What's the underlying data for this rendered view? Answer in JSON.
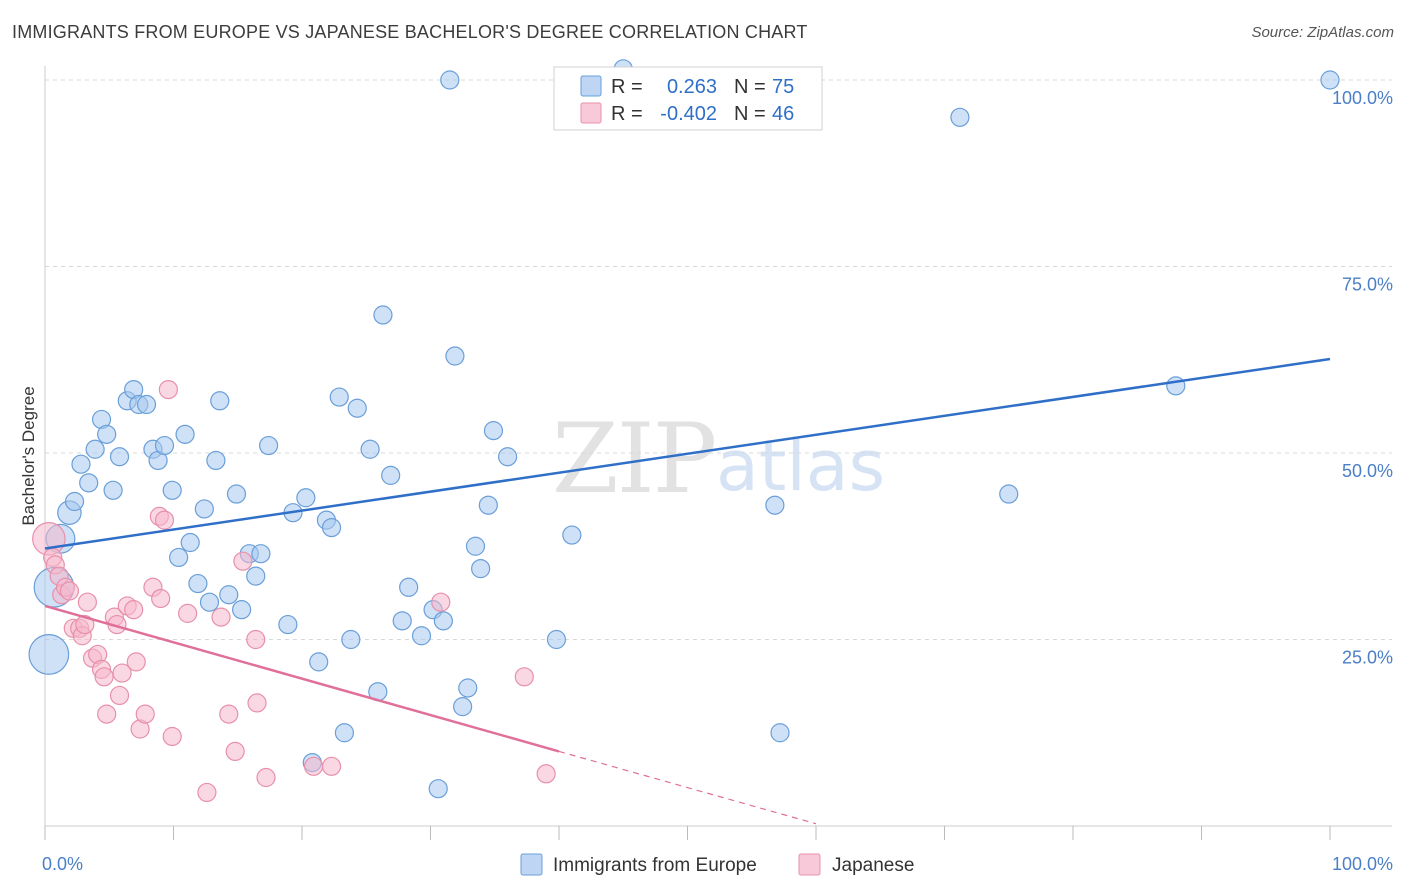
{
  "header": {
    "title": "IMMIGRANTS FROM EUROPE VS JAPANESE BACHELOR'S DEGREE CORRELATION CHART",
    "source": "Source: ZipAtlas.com"
  },
  "watermark": {
    "zip": "ZIP",
    "atlas": "atlas"
  },
  "colors": {
    "europe_fill": "#a8c8f0",
    "europe_stroke": "#6a9fd8",
    "europe_line": "#2f6fc8",
    "japanese_fill": "#f6b8cc",
    "japanese_stroke": "#e890aa",
    "japanese_line": "#e0709a",
    "grid": "#d8d8d8",
    "tick_text": "#4a7fc8"
  },
  "stats": {
    "europe": {
      "r_label": "R =",
      "r_value": "0.263",
      "n_label": "N =",
      "n_value": "75"
    },
    "japanese": {
      "r_label": "R =",
      "r_value": "-0.402",
      "n_label": "N =",
      "n_value": "46"
    }
  },
  "chart_data": {
    "type": "scatter",
    "title": "IMMIGRANTS FROM EUROPE VS JAPANESE BACHELOR'S DEGREE CORRELATION CHART",
    "xlabel": "",
    "ylabel": "Bachelor's Degree",
    "xlim": [
      0,
      100
    ],
    "ylim": [
      0,
      102
    ],
    "x_tick_labels": [
      {
        "value": 0,
        "label": "0.0%"
      },
      {
        "value": 100,
        "label": "100.0%"
      }
    ],
    "y_tick_labels": [
      {
        "value": 25,
        "label": "25.0%"
      },
      {
        "value": 50,
        "label": "50.0%"
      },
      {
        "value": 75,
        "label": "75.0%"
      },
      {
        "value": 100,
        "label": "100.0%"
      }
    ],
    "x_minor_ticks": [
      0,
      10,
      20,
      30,
      40,
      50,
      60,
      70,
      80,
      90,
      100
    ],
    "grid": true,
    "legend": [
      {
        "name": "Immigrants from Europe",
        "series": "europe"
      },
      {
        "name": "Japanese",
        "series": "japanese"
      }
    ],
    "series": [
      {
        "name": "Immigrants from Europe",
        "key": "europe",
        "points": [
          [
            0.3,
            23,
            2.2
          ],
          [
            0.7,
            32,
            2.2
          ],
          [
            1.2,
            38.5,
            1.6
          ],
          [
            1.9,
            42,
            1.3
          ],
          [
            2.3,
            43.5,
            1
          ],
          [
            2.8,
            48.5,
            1
          ],
          [
            3.4,
            46,
            1
          ],
          [
            3.9,
            50.5,
            1
          ],
          [
            4.4,
            54.5,
            1
          ],
          [
            4.8,
            52.5,
            1
          ],
          [
            5.3,
            45,
            1
          ],
          [
            5.8,
            49.5,
            1
          ],
          [
            6.4,
            57,
            1
          ],
          [
            6.9,
            58.5,
            1
          ],
          [
            7.3,
            56.5,
            1
          ],
          [
            7.9,
            56.5,
            1
          ],
          [
            8.4,
            50.5,
            1
          ],
          [
            8.8,
            49,
            1
          ],
          [
            9.3,
            51,
            1
          ],
          [
            9.9,
            45,
            1
          ],
          [
            10.4,
            36,
            1
          ],
          [
            10.9,
            52.5,
            1
          ],
          [
            11.3,
            38,
            1
          ],
          [
            11.9,
            32.5,
            1
          ],
          [
            12.4,
            42.5,
            1
          ],
          [
            12.8,
            30,
            1
          ],
          [
            13.3,
            49,
            1
          ],
          [
            13.6,
            57,
            1
          ],
          [
            14.3,
            31,
            1
          ],
          [
            14.9,
            44.5,
            1
          ],
          [
            15.3,
            29,
            1
          ],
          [
            15.9,
            36.5,
            1
          ],
          [
            16.4,
            33.5,
            1
          ],
          [
            16.8,
            36.5,
            1
          ],
          [
            17.4,
            51,
            1
          ],
          [
            18.9,
            27,
            1
          ],
          [
            19.3,
            42,
            1
          ],
          [
            20.3,
            44,
            1
          ],
          [
            20.8,
            8.5,
            1
          ],
          [
            21.3,
            22,
            1
          ],
          [
            21.9,
            41,
            1
          ],
          [
            22.3,
            40,
            1
          ],
          [
            22.9,
            57.5,
            1
          ],
          [
            23.3,
            12.5,
            1
          ],
          [
            23.8,
            25,
            1
          ],
          [
            24.3,
            56,
            1
          ],
          [
            25.3,
            50.5,
            1
          ],
          [
            25.9,
            18,
            1
          ],
          [
            26.3,
            68.5,
            1
          ],
          [
            26.9,
            47,
            1
          ],
          [
            27.8,
            27.5,
            1
          ],
          [
            28.3,
            32,
            1
          ],
          [
            29.3,
            25.5,
            1
          ],
          [
            30.2,
            29,
            1
          ],
          [
            31.0,
            27.5,
            1
          ],
          [
            30.6,
            5,
            1
          ],
          [
            31.5,
            100,
            1
          ],
          [
            31.9,
            63,
            1
          ],
          [
            32.5,
            16,
            1
          ],
          [
            32.9,
            18.5,
            1
          ],
          [
            33.5,
            37.5,
            1
          ],
          [
            33.9,
            34.5,
            1
          ],
          [
            34.5,
            43,
            1
          ],
          [
            34.9,
            53,
            1
          ],
          [
            36.0,
            49.5,
            1
          ],
          [
            39.8,
            25,
            1
          ],
          [
            41.0,
            39,
            1
          ],
          [
            48.0,
            100,
            1
          ],
          [
            56.8,
            43,
            1
          ],
          [
            57.2,
            12.5,
            1
          ],
          [
            71.2,
            95,
            1
          ],
          [
            75.0,
            44.5,
            1
          ],
          [
            88.0,
            59,
            1
          ],
          [
            100.0,
            100,
            1
          ],
          [
            45.0,
            101.5,
            1
          ]
        ],
        "trend": {
          "x": [
            0,
            100
          ],
          "y": [
            37.2,
            62.6
          ],
          "style": "solid"
        }
      },
      {
        "name": "Japanese",
        "key": "japanese",
        "points": [
          [
            0.3,
            38.5,
            1.8
          ],
          [
            0.6,
            36,
            1
          ],
          [
            0.8,
            35,
            1
          ],
          [
            1.1,
            33.5,
            1
          ],
          [
            1.3,
            31,
            1
          ],
          [
            1.6,
            32,
            1
          ],
          [
            1.9,
            31.5,
            1
          ],
          [
            2.2,
            26.5,
            1
          ],
          [
            2.7,
            26.5,
            1
          ],
          [
            2.9,
            25.5,
            1
          ],
          [
            3.1,
            27,
            1
          ],
          [
            3.3,
            30,
            1
          ],
          [
            3.7,
            22.5,
            1
          ],
          [
            4.1,
            23,
            1
          ],
          [
            4.4,
            21,
            1
          ],
          [
            4.6,
            20,
            1
          ],
          [
            4.8,
            15,
            1
          ],
          [
            5.4,
            28,
            1
          ],
          [
            5.6,
            27,
            1
          ],
          [
            5.8,
            17.5,
            1
          ],
          [
            6.0,
            20.5,
            1
          ],
          [
            6.4,
            29.5,
            1
          ],
          [
            6.9,
            29,
            1
          ],
          [
            7.1,
            22,
            1
          ],
          [
            7.4,
            13,
            1
          ],
          [
            7.8,
            15,
            1
          ],
          [
            8.4,
            32,
            1
          ],
          [
            8.9,
            41.5,
            1
          ],
          [
            9.3,
            41,
            1
          ],
          [
            9.6,
            58.5,
            1
          ],
          [
            9.9,
            12,
            1
          ],
          [
            11.1,
            28.5,
            1
          ],
          [
            12.6,
            4.5,
            1
          ],
          [
            13.7,
            28,
            1
          ],
          [
            14.3,
            15,
            1
          ],
          [
            14.8,
            10,
            1
          ],
          [
            15.4,
            35.5,
            1
          ],
          [
            16.4,
            25,
            1
          ],
          [
            16.5,
            16.5,
            1
          ],
          [
            17.2,
            6.5,
            1
          ],
          [
            20.9,
            8,
            1
          ],
          [
            22.3,
            8,
            1
          ],
          [
            30.8,
            30,
            1
          ],
          [
            37.3,
            20,
            1
          ],
          [
            39.0,
            7,
            1
          ],
          [
            9.0,
            30.5,
            1
          ]
        ],
        "trend": {
          "x": [
            0,
            40
          ],
          "y": [
            29.5,
            10
          ],
          "style": "solid",
          "extension": {
            "x": [
              40,
              60
            ],
            "y": [
              10,
              0.3
            ],
            "style": "dashed"
          }
        }
      }
    ]
  }
}
